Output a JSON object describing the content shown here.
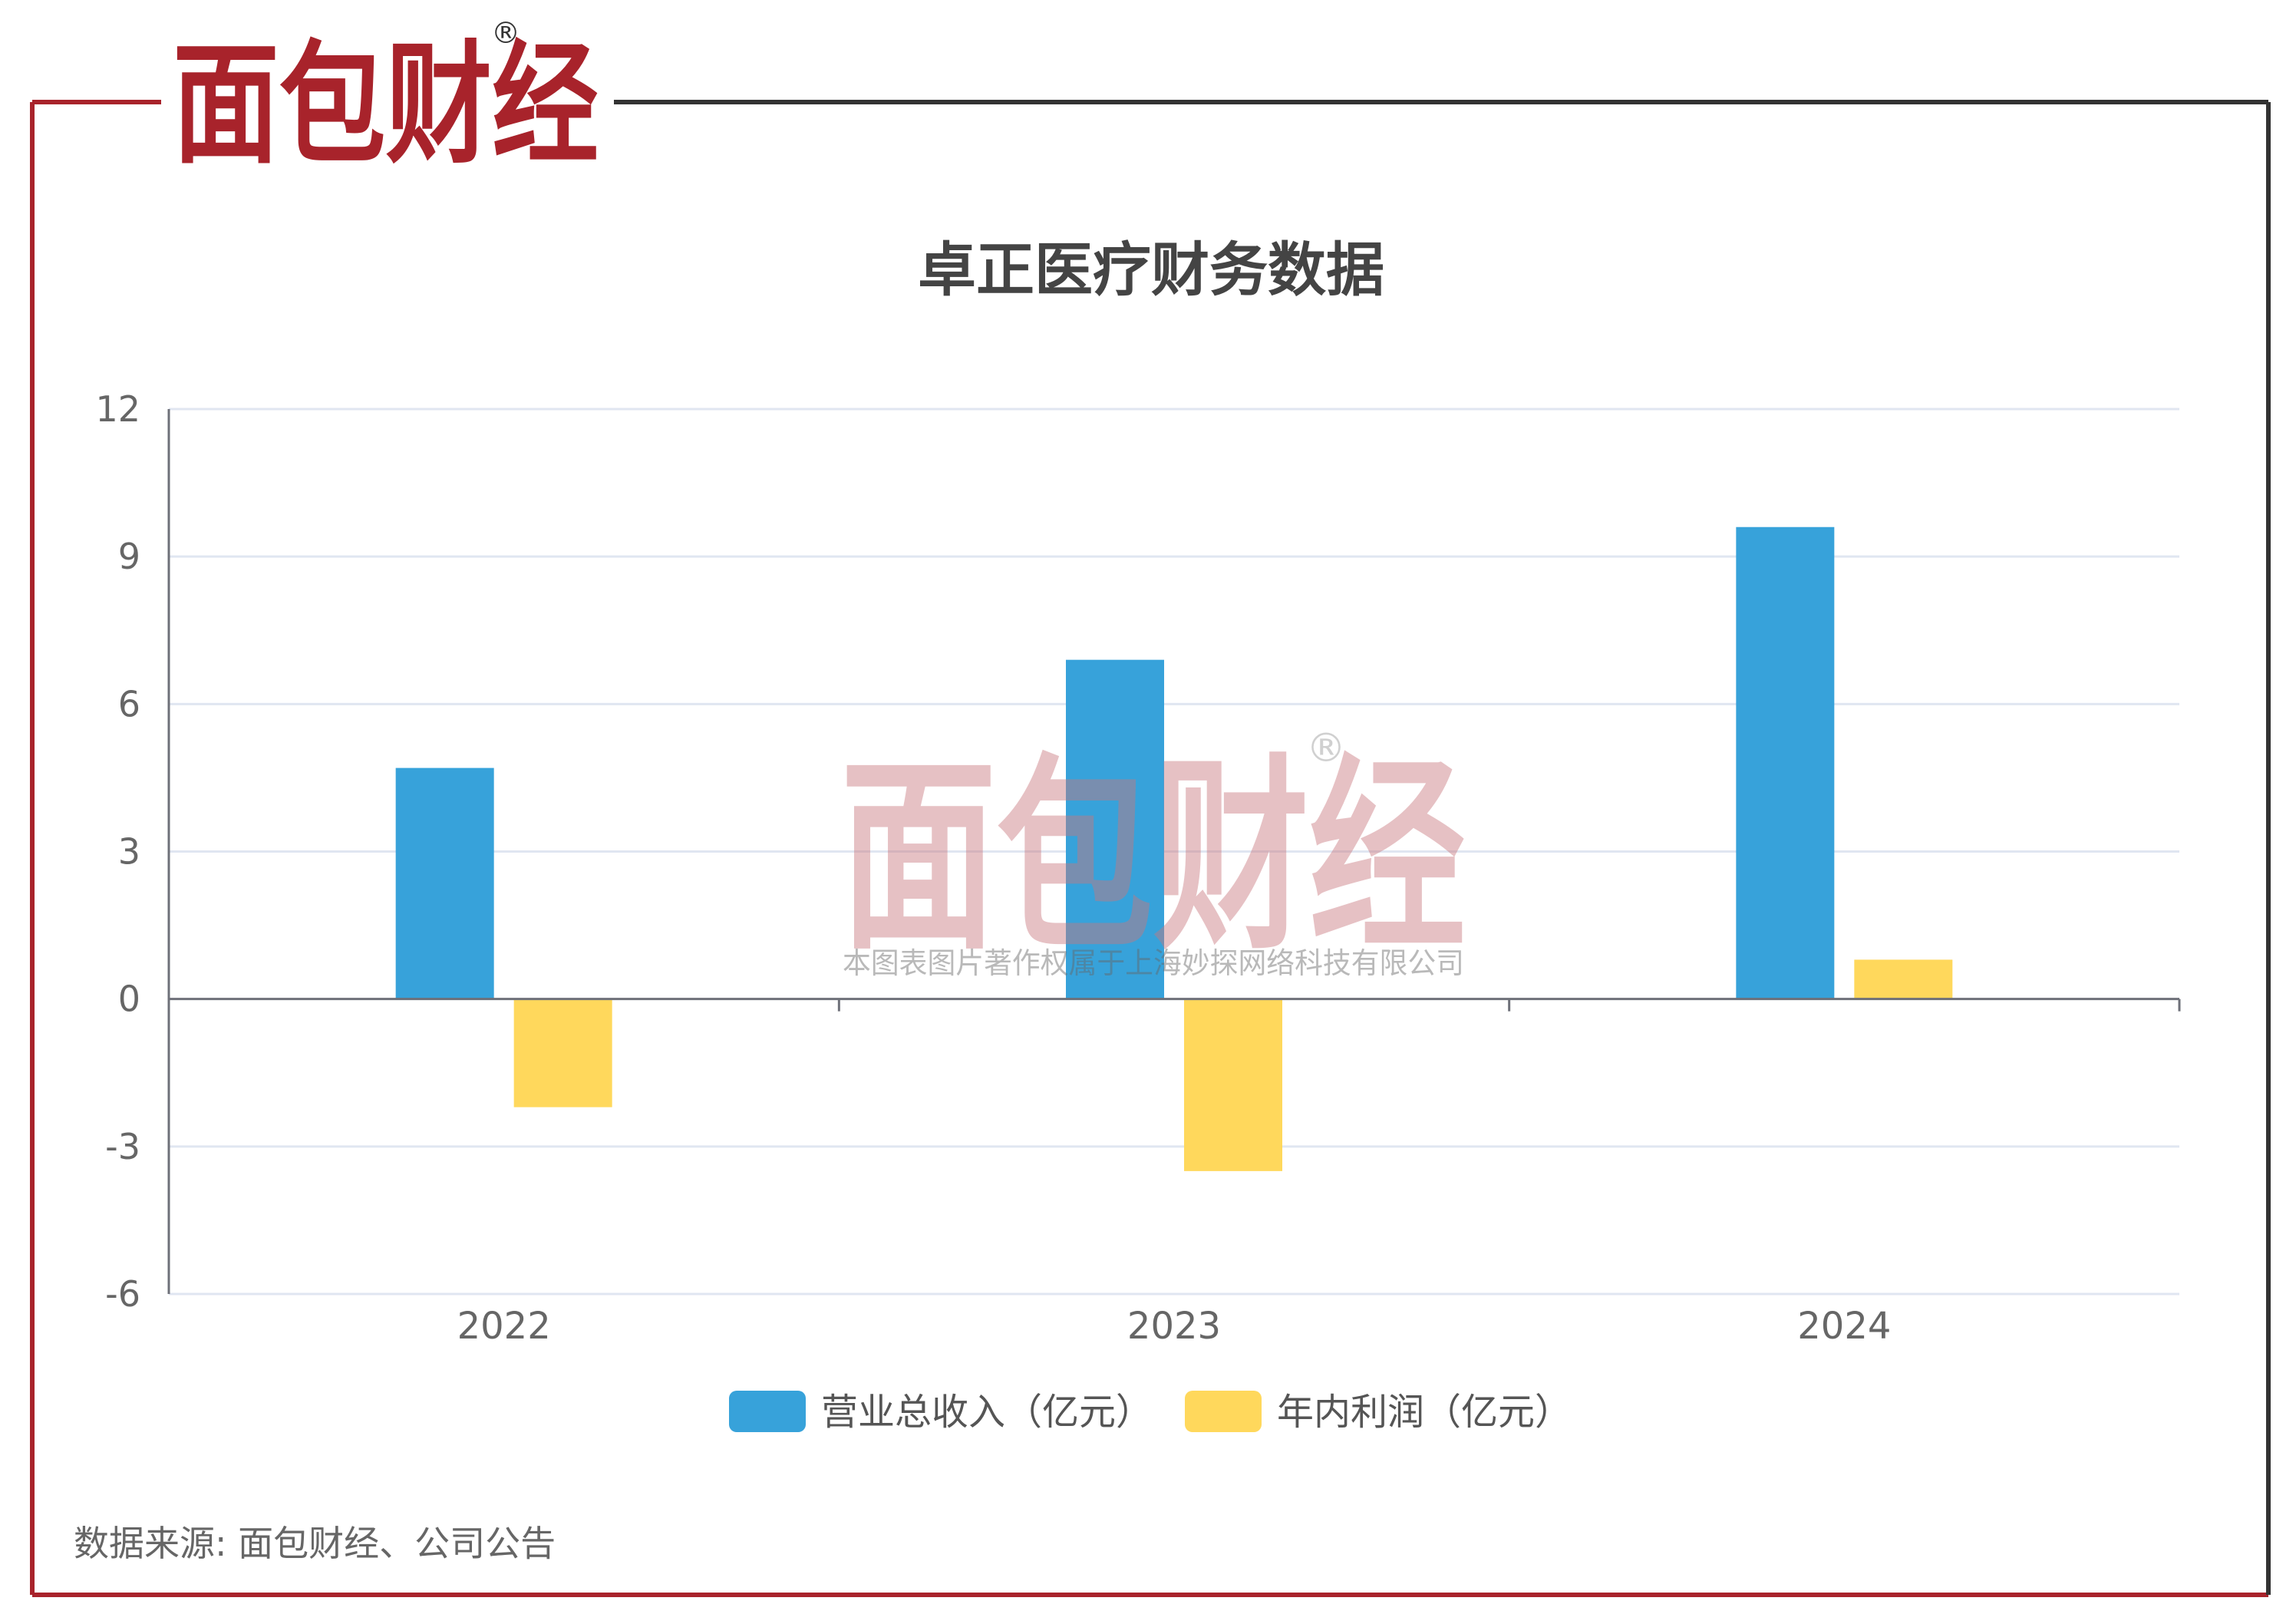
{
  "brand": {
    "logo_text": "面包财经",
    "registered_mark": "®",
    "colors": {
      "red": "#A8232B",
      "dark": "#1F1F1F",
      "frame_left": "#A8232B",
      "frame_right": "#333333"
    }
  },
  "watermark": {
    "logo_text": "面包财经",
    "registered_mark": "®",
    "caption": "本图表图片著作权属于上海妙探网络科技有限公司"
  },
  "chart_data": {
    "type": "bar",
    "title": "卓正医疗财务数据",
    "categories": [
      "2022",
      "2023",
      "2024"
    ],
    "series": [
      {
        "name": "营业总收入（亿元）",
        "color": "#37A2DA",
        "values": [
          4.7,
          6.9,
          9.6
        ]
      },
      {
        "name": "年内利润（亿元）",
        "color": "#FFD85C",
        "values": [
          -2.2,
          -3.5,
          0.8
        ]
      }
    ],
    "ylim": [
      -6,
      12
    ],
    "yticks": [
      12,
      9,
      6,
      3,
      0,
      -3,
      -6
    ],
    "grid": true,
    "legend_position": "bottom"
  },
  "footer": {
    "source": "数据来源: 面包财经、公司公告"
  }
}
